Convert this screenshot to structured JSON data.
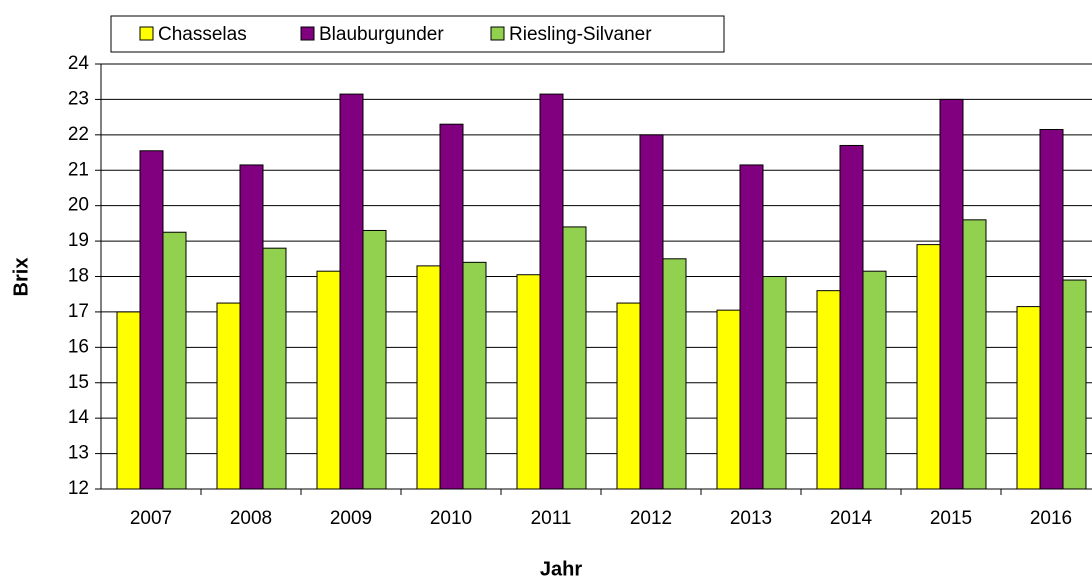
{
  "chart_data": {
    "type": "bar",
    "x_label": "Jahr",
    "y_label": "Brix",
    "categories": [
      "2007",
      "2008",
      "2009",
      "2010",
      "2011",
      "2012",
      "2013",
      "2014",
      "2015",
      "2016"
    ],
    "series": [
      {
        "name": "Chasselas",
        "color": "#ffff00",
        "values": [
          17.0,
          17.25,
          18.15,
          18.3,
          18.05,
          17.25,
          17.05,
          17.6,
          18.9,
          17.15
        ]
      },
      {
        "name": "Blauburgunder",
        "color": "#800080",
        "values": [
          21.55,
          21.15,
          23.15,
          22.3,
          23.15,
          22.0,
          21.15,
          21.7,
          23.0,
          22.15
        ]
      },
      {
        "name": "Riesling-Silvaner",
        "color": "#92d050",
        "values": [
          19.25,
          18.8,
          19.3,
          18.4,
          19.4,
          18.5,
          18.0,
          18.15,
          19.6,
          17.9
        ]
      }
    ],
    "ylim": [
      12,
      24
    ],
    "yticks": [
      12,
      13,
      14,
      15,
      16,
      17,
      18,
      19,
      20,
      21,
      22,
      23,
      24
    ],
    "grid": true
  }
}
